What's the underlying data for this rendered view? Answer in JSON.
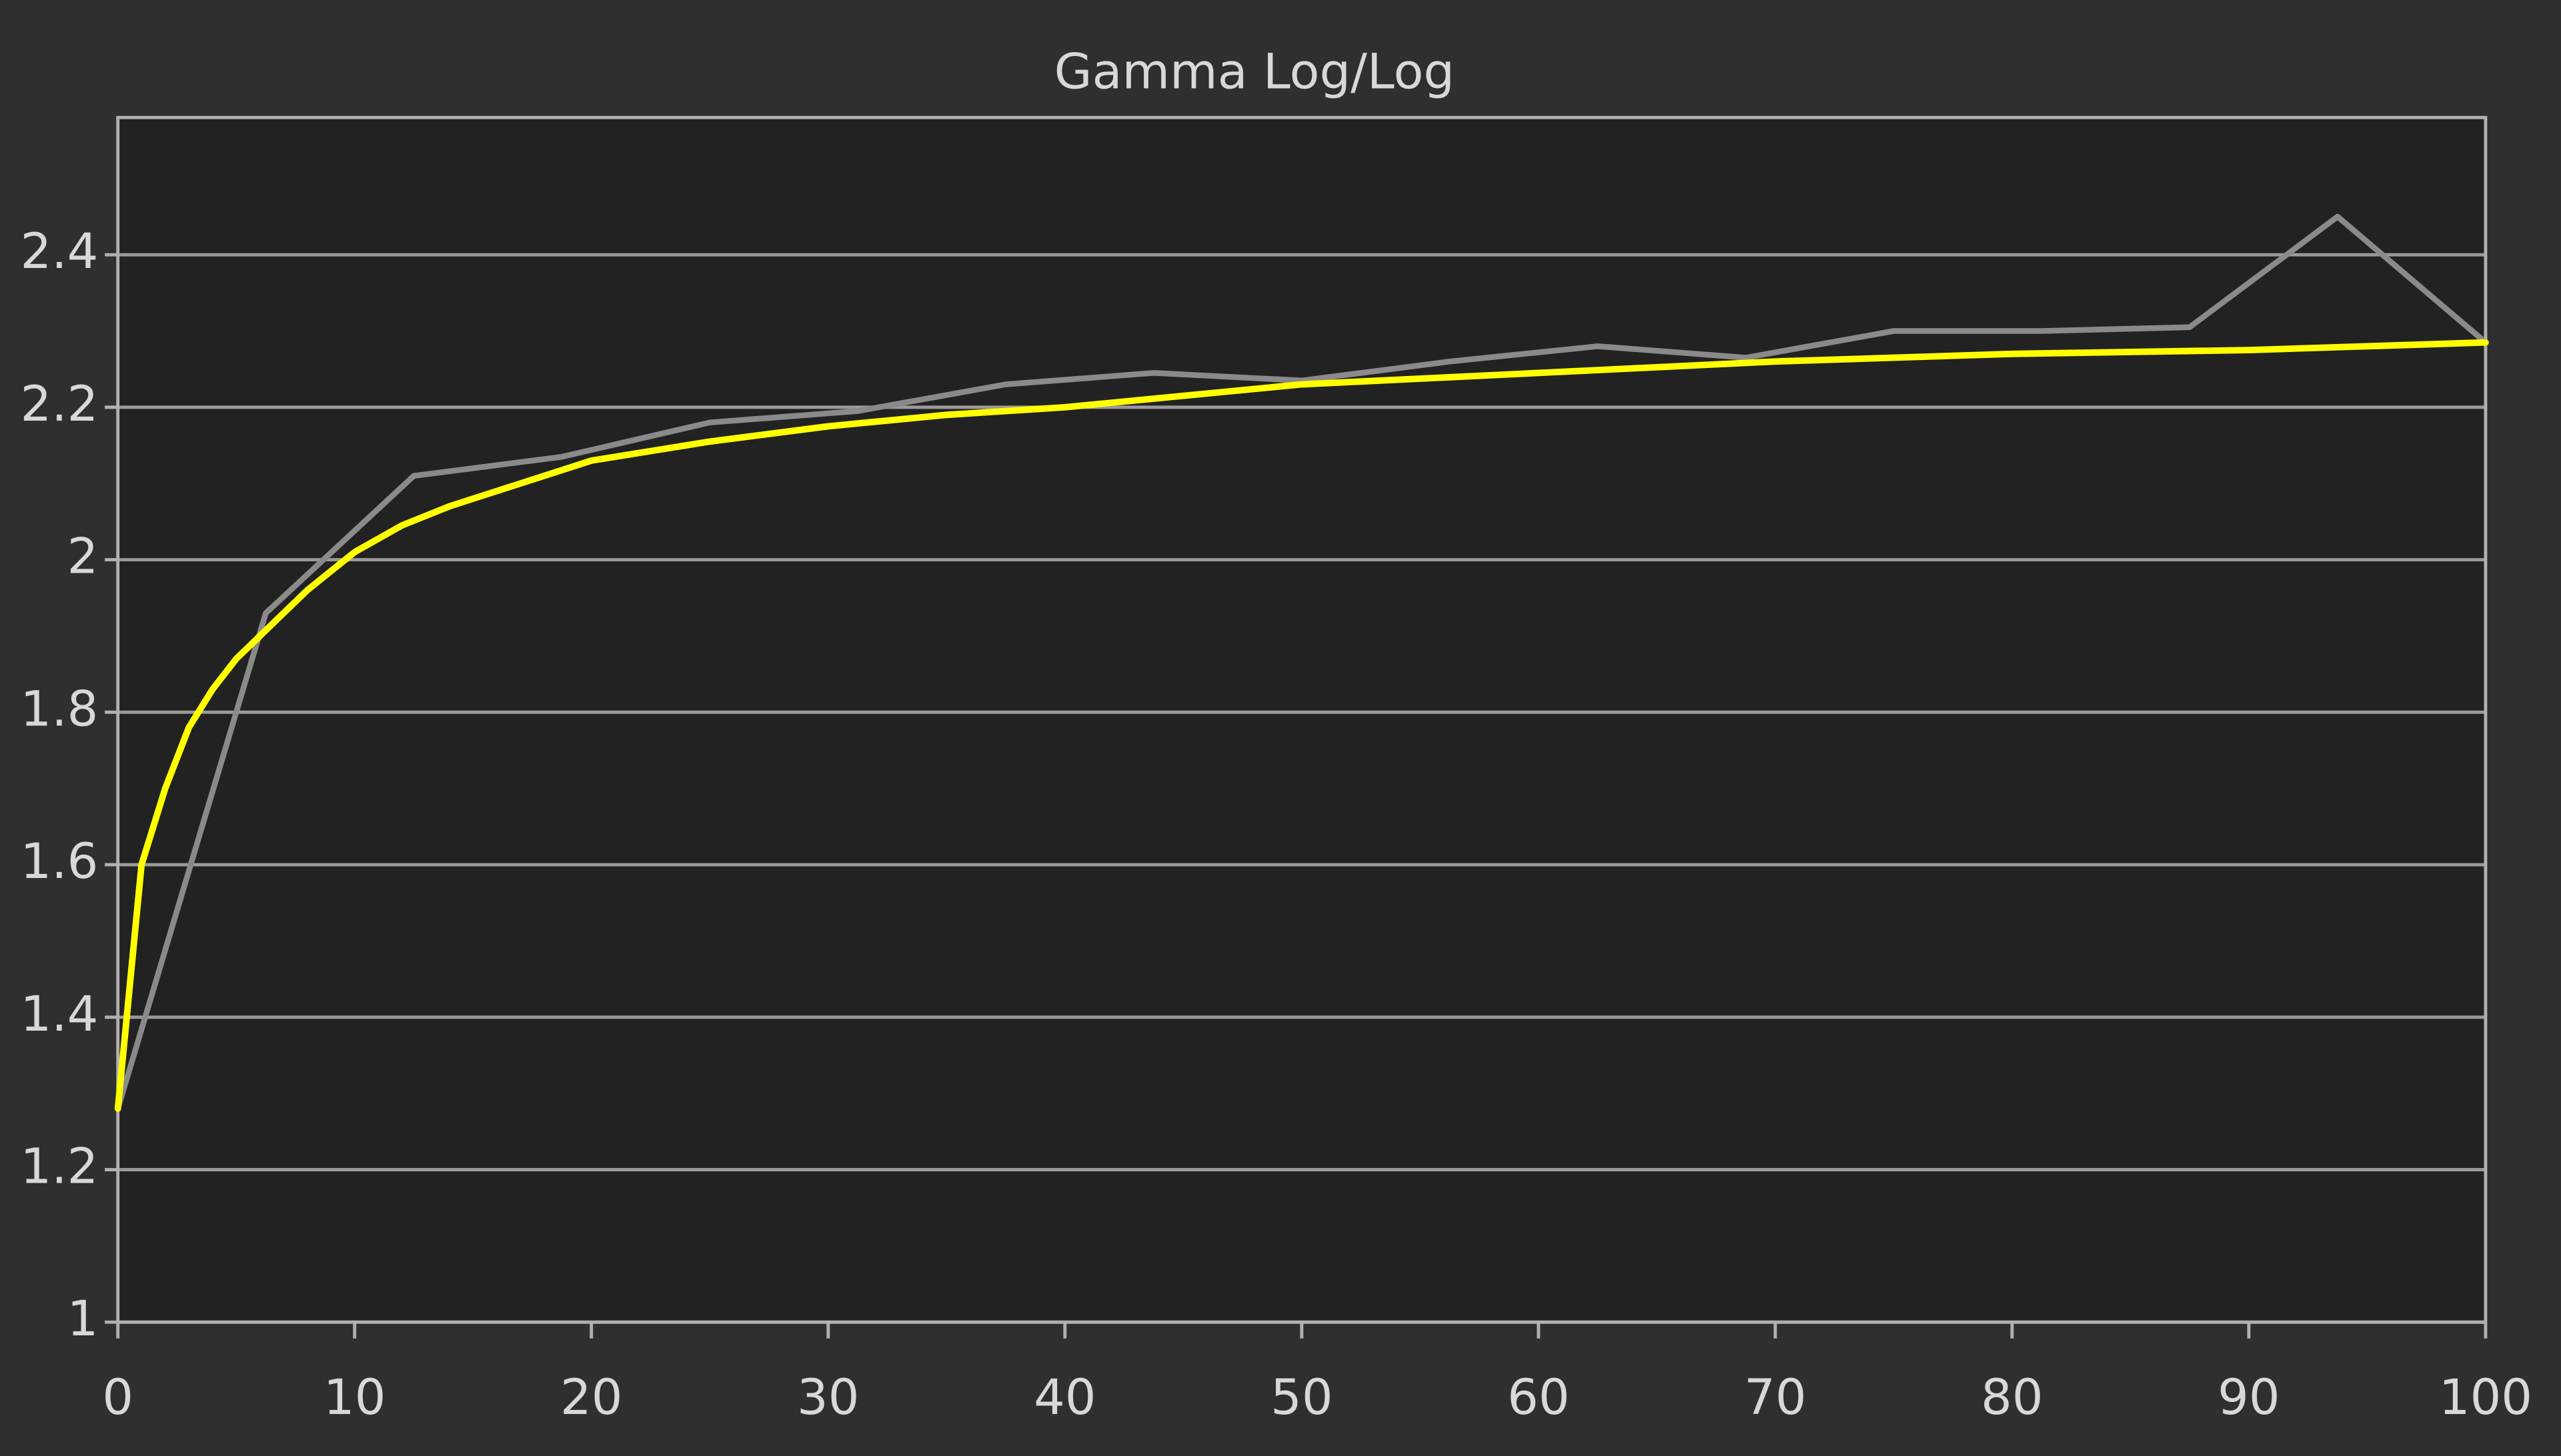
{
  "chart_data": {
    "type": "line",
    "title": "Gamma Log/Log",
    "xlim": [
      0,
      100
    ],
    "xticks": [
      0,
      10,
      20,
      30,
      40,
      50,
      60,
      70,
      80,
      90,
      100
    ],
    "ylim": [
      1,
      2.58
    ],
    "yticks": [
      1,
      1.2,
      1.4,
      1.6,
      1.8,
      2,
      2.2,
      2.4
    ],
    "grid": true,
    "series": [
      {
        "color": "#8a8a8a",
        "x": [
          0,
          6.25,
          12.5,
          18.75,
          25,
          31.25,
          37.5,
          43.75,
          50,
          56.25,
          62.5,
          68.75,
          75,
          81.25,
          87.5,
          93.75,
          100
        ],
        "values": [
          1.28,
          1.93,
          2.11,
          2.135,
          2.18,
          2.195,
          2.23,
          2.245,
          2.235,
          2.26,
          2.28,
          2.265,
          2.3,
          2.3,
          2.305,
          2.45,
          2.285
        ]
      },
      {
        "color": "#ffff00",
        "x": [
          0,
          1,
          2,
          3,
          4,
          5,
          6,
          7,
          8,
          10,
          12,
          14,
          17,
          20,
          25,
          30,
          35,
          40,
          50,
          60,
          70,
          80,
          90,
          100
        ],
        "values": [
          1.28,
          1.6,
          1.7,
          1.78,
          1.83,
          1.87,
          1.9,
          1.93,
          1.96,
          2.01,
          2.045,
          2.07,
          2.1,
          2.13,
          2.155,
          2.175,
          2.19,
          2.2,
          2.23,
          2.245,
          2.26,
          2.27,
          2.275,
          2.285
        ]
      }
    ]
  }
}
